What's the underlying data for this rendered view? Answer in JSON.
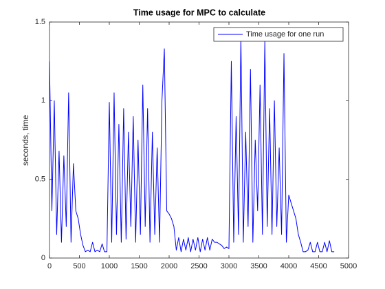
{
  "chart_data": {
    "type": "line",
    "title": "Time usage for MPC to calculate",
    "ylabel": "seconds, time",
    "legend": "northeast",
    "x": [
      0,
      40,
      80,
      120,
      160,
      200,
      240,
      280,
      320,
      360,
      400,
      440,
      480,
      520,
      560,
      600,
      640,
      680,
      720,
      760,
      800,
      840,
      880,
      920,
      960,
      1000,
      1040,
      1080,
      1120,
      1160,
      1200,
      1240,
      1280,
      1320,
      1360,
      1400,
      1440,
      1480,
      1520,
      1560,
      1600,
      1640,
      1680,
      1720,
      1760,
      1800,
      1840,
      1880,
      1920,
      1960,
      2000,
      2040,
      2080,
      2120,
      2160,
      2200,
      2240,
      2280,
      2320,
      2360,
      2400,
      2440,
      2480,
      2520,
      2560,
      2600,
      2640,
      2680,
      2720,
      2760,
      2800,
      2840,
      2880,
      2920,
      2960,
      3000,
      3040,
      3080,
      3120,
      3160,
      3200,
      3240,
      3280,
      3320,
      3360,
      3400,
      3440,
      3480,
      3520,
      3560,
      3600,
      3640,
      3680,
      3720,
      3760,
      3800,
      3840,
      3880,
      3920,
      3960,
      4000,
      4040,
      4080,
      4120,
      4160,
      4200,
      4240,
      4280,
      4320,
      4360,
      4400,
      4440,
      4480,
      4520,
      4560,
      4600,
      4640,
      4680,
      4720,
      4760
    ],
    "series": [
      {
        "name": "Time usage for one run",
        "color": "#0000ff",
        "values": [
          1.25,
          0.3,
          1.0,
          0.15,
          0.68,
          0.1,
          0.65,
          0.2,
          1.05,
          0.1,
          0.6,
          0.3,
          0.25,
          0.15,
          0.08,
          0.04,
          0.05,
          0.04,
          0.1,
          0.04,
          0.05,
          0.04,
          0.09,
          0.04,
          0.04,
          0.99,
          0.1,
          1.05,
          0.15,
          0.85,
          0.1,
          0.95,
          0.12,
          0.8,
          0.2,
          0.9,
          0.1,
          0.75,
          0.15,
          1.1,
          0.2,
          0.95,
          0.1,
          0.8,
          0.15,
          0.7,
          0.1,
          1.0,
          1.33,
          0.3,
          0.28,
          0.25,
          0.2,
          0.05,
          0.13,
          0.04,
          0.12,
          0.05,
          0.13,
          0.04,
          0.12,
          0.05,
          0.13,
          0.04,
          0.12,
          0.05,
          0.13,
          0.05,
          0.12,
          0.1,
          0.1,
          0.09,
          0.08,
          0.06,
          0.07,
          0.06,
          1.25,
          0.1,
          0.9,
          0.15,
          1.4,
          0.1,
          0.8,
          0.2,
          1.2,
          0.1,
          0.75,
          0.3,
          1.1,
          0.15,
          1.38,
          0.2,
          0.95,
          0.15,
          1.0,
          0.2,
          0.7,
          0.15,
          1.3,
          0.1,
          0.4,
          0.35,
          0.3,
          0.25,
          0.15,
          0.1,
          0.04,
          0.04,
          0.05,
          0.1,
          0.04,
          0.04,
          0.1,
          0.04,
          0.04,
          0.1,
          0.04,
          0.11,
          0.04,
          0.04
        ]
      }
    ],
    "xlim": [
      0,
      5000
    ],
    "xticks": [
      0,
      500,
      1000,
      1500,
      2000,
      2500,
      3000,
      3500,
      4000,
      4500,
      5000
    ],
    "ylim": [
      0,
      1.5
    ],
    "yticks": [
      0,
      0.5,
      1,
      1.5
    ]
  }
}
